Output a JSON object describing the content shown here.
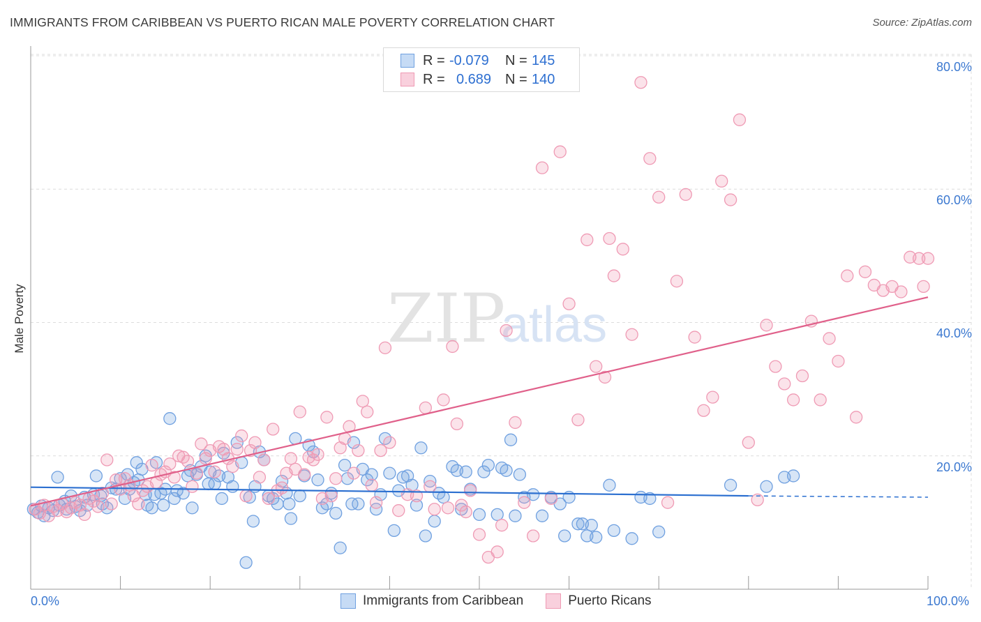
{
  "title": "IMMIGRANTS FROM CARIBBEAN VS PUERTO RICAN MALE POVERTY CORRELATION CHART",
  "source": "Source: ZipAtlas.com",
  "watermark": {
    "zip": "ZIP",
    "atlas": "atlas"
  },
  "legend_top": {
    "row1": {
      "r_label": "R =",
      "r_value": "-0.079",
      "n_label": "N =",
      "n_value": "145"
    },
    "row2": {
      "r_label": "R =",
      "r_value": "0.689",
      "n_label": "N =",
      "n_value": "140"
    }
  },
  "legend_bottom": {
    "series1": "Immigrants from Caribbean",
    "series2": "Puerto Ricans"
  },
  "colors": {
    "blue": "#6fa0e0",
    "blue_line": "#2b6fd0",
    "pink": "#ef9ab4",
    "pink_line": "#e0608a",
    "tick_text": "#3b78d0"
  },
  "chart_data": {
    "type": "scatter",
    "title": "IMMIGRANTS FROM CARIBBEAN VS PUERTO RICAN MALE POVERTY CORRELATION CHART",
    "xlabel": "",
    "ylabel": "Male Poverty",
    "xlim": [
      0,
      100
    ],
    "ylim": [
      0,
      80
    ],
    "x_ticks": [
      "0.0%",
      "100.0%"
    ],
    "y_ticks": [
      "20.0%",
      "40.0%",
      "60.0%",
      "80.0%"
    ],
    "grid": true,
    "legend": "top-center",
    "series": [
      {
        "name": "Immigrants from Caribbean",
        "color": "#6fa0e0",
        "trend": {
          "x": [
            0,
            80
          ],
          "y": [
            15.3,
            14.0
          ],
          "dashed_x": [
            80,
            100
          ],
          "dashed_y": [
            14.0,
            13.8
          ]
        },
        "points": [
          [
            0.3,
            12.0
          ],
          [
            0.8,
            11.5
          ],
          [
            1.2,
            12.5
          ],
          [
            1.5,
            11.0
          ],
          [
            2.0,
            12.2
          ],
          [
            2.5,
            11.8
          ],
          [
            3.0,
            16.8
          ],
          [
            3.2,
            12.6
          ],
          [
            3.8,
            13.2
          ],
          [
            4.0,
            12.0
          ],
          [
            4.5,
            14.0
          ],
          [
            5.0,
            12.4
          ],
          [
            5.5,
            11.8
          ],
          [
            6.0,
            13.8
          ],
          [
            6.3,
            12.6
          ],
          [
            7.0,
            14.2
          ],
          [
            7.3,
            17.0
          ],
          [
            7.8,
            14.0
          ],
          [
            8.0,
            12.8
          ],
          [
            8.5,
            12.2
          ],
          [
            9.0,
            15.2
          ],
          [
            9.5,
            15.0
          ],
          [
            10.0,
            16.6
          ],
          [
            10.5,
            13.6
          ],
          [
            10.8,
            17.2
          ],
          [
            11.0,
            15.0
          ],
          [
            11.5,
            16.0
          ],
          [
            11.8,
            19.0
          ],
          [
            12.0,
            16.4
          ],
          [
            12.4,
            18.0
          ],
          [
            12.8,
            14.2
          ],
          [
            13.0,
            12.6
          ],
          [
            13.5,
            12.2
          ],
          [
            13.8,
            14.2
          ],
          [
            14.0,
            19.0
          ],
          [
            14.5,
            14.4
          ],
          [
            14.8,
            12.6
          ],
          [
            15.0,
            15.0
          ],
          [
            15.5,
            25.6
          ],
          [
            16.0,
            13.6
          ],
          [
            16.3,
            14.8
          ],
          [
            17.0,
            14.4
          ],
          [
            17.5,
            17.0
          ],
          [
            17.8,
            17.8
          ],
          [
            18.0,
            12.2
          ],
          [
            18.5,
            17.2
          ],
          [
            19.0,
            18.4
          ],
          [
            19.5,
            20.0
          ],
          [
            19.8,
            15.8
          ],
          [
            20.0,
            17.6
          ],
          [
            20.5,
            15.8
          ],
          [
            21.0,
            17.0
          ],
          [
            21.3,
            13.6
          ],
          [
            21.5,
            20.4
          ],
          [
            22.0,
            16.8
          ],
          [
            22.5,
            15.4
          ],
          [
            23.0,
            22.0
          ],
          [
            23.5,
            19.0
          ],
          [
            24.0,
            4.0
          ],
          [
            24.4,
            13.8
          ],
          [
            24.8,
            10.2
          ],
          [
            25.0,
            15.4
          ],
          [
            25.5,
            20.6
          ],
          [
            26.0,
            19.4
          ],
          [
            26.5,
            14.0
          ],
          [
            27.0,
            13.6
          ],
          [
            27.5,
            12.8
          ],
          [
            28.0,
            16.2
          ],
          [
            28.5,
            14.4
          ],
          [
            28.8,
            12.8
          ],
          [
            29.0,
            10.6
          ],
          [
            29.5,
            22.6
          ],
          [
            30.0,
            14.0
          ],
          [
            30.5,
            17.0
          ],
          [
            31.0,
            21.6
          ],
          [
            31.5,
            20.6
          ],
          [
            32.0,
            16.4
          ],
          [
            32.5,
            12.2
          ],
          [
            33.0,
            12.8
          ],
          [
            33.5,
            14.4
          ],
          [
            34.0,
            11.4
          ],
          [
            34.5,
            6.2
          ],
          [
            35.0,
            18.6
          ],
          [
            35.3,
            16.6
          ],
          [
            35.8,
            12.8
          ],
          [
            36.0,
            22.0
          ],
          [
            36.5,
            12.8
          ],
          [
            37.0,
            18.0
          ],
          [
            37.5,
            16.4
          ],
          [
            38.0,
            17.2
          ],
          [
            38.5,
            12.0
          ],
          [
            39.0,
            14.2
          ],
          [
            39.5,
            22.6
          ],
          [
            40.0,
            17.4
          ],
          [
            40.5,
            8.8
          ],
          [
            41.0,
            14.8
          ],
          [
            41.5,
            16.8
          ],
          [
            42.0,
            17.0
          ],
          [
            42.5,
            15.6
          ],
          [
            43.0,
            12.6
          ],
          [
            43.5,
            21.2
          ],
          [
            44.0,
            8.0
          ],
          [
            44.5,
            16.2
          ],
          [
            45.0,
            10.2
          ],
          [
            45.5,
            14.4
          ],
          [
            46.0,
            13.8
          ],
          [
            47.0,
            18.4
          ],
          [
            47.5,
            17.8
          ],
          [
            48.0,
            12.0
          ],
          [
            48.5,
            17.6
          ],
          [
            49.0,
            15.0
          ],
          [
            50.0,
            11.2
          ],
          [
            50.5,
            17.6
          ],
          [
            51.0,
            18.6
          ],
          [
            52.0,
            11.2
          ],
          [
            52.5,
            18.2
          ],
          [
            53.0,
            17.8
          ],
          [
            53.5,
            22.4
          ],
          [
            54.0,
            11.0
          ],
          [
            54.5,
            17.2
          ],
          [
            55.0,
            13.8
          ],
          [
            56.0,
            14.2
          ],
          [
            57.0,
            11.0
          ],
          [
            58.0,
            13.8
          ],
          [
            59.0,
            12.8
          ],
          [
            59.5,
            8.0
          ],
          [
            60.0,
            13.8
          ],
          [
            61.0,
            9.8
          ],
          [
            61.5,
            9.8
          ],
          [
            62.0,
            8.0
          ],
          [
            62.5,
            9.6
          ],
          [
            63.0,
            7.8
          ],
          [
            64.5,
            15.6
          ],
          [
            65.0,
            8.8
          ],
          [
            67.0,
            7.6
          ],
          [
            68.0,
            13.8
          ],
          [
            69.0,
            13.6
          ],
          [
            70.0,
            8.6
          ],
          [
            78.0,
            15.6
          ],
          [
            82.0,
            15.4
          ],
          [
            84.0,
            16.8
          ],
          [
            85.0,
            17.0
          ]
        ]
      },
      {
        "name": "Puerto Ricans",
        "color": "#ef9ab4",
        "trend": {
          "x": [
            0,
            100
          ],
          "y": [
            12.5,
            43.8
          ]
        },
        "points": [
          [
            0.5,
            12.0
          ],
          [
            1.0,
            11.4
          ],
          [
            1.5,
            12.6
          ],
          [
            2.0,
            11.0
          ],
          [
            2.5,
            12.4
          ],
          [
            3.0,
            11.8
          ],
          [
            3.5,
            12.8
          ],
          [
            4.0,
            11.6
          ],
          [
            4.5,
            12.2
          ],
          [
            5.0,
            13.0
          ],
          [
            5.5,
            12.6
          ],
          [
            6.0,
            11.2
          ],
          [
            6.5,
            13.6
          ],
          [
            7.0,
            13.2
          ],
          [
            7.5,
            12.4
          ],
          [
            8.0,
            14.4
          ],
          [
            8.5,
            19.4
          ],
          [
            9.0,
            12.8
          ],
          [
            9.5,
            16.4
          ],
          [
            10.0,
            15.0
          ],
          [
            10.5,
            16.6
          ],
          [
            11.0,
            15.6
          ],
          [
            11.5,
            14.0
          ],
          [
            12.0,
            12.8
          ],
          [
            12.5,
            14.8
          ],
          [
            13.0,
            15.4
          ],
          [
            13.5,
            18.6
          ],
          [
            14.0,
            16.0
          ],
          [
            14.5,
            17.2
          ],
          [
            15.0,
            17.6
          ],
          [
            15.5,
            18.8
          ],
          [
            16.0,
            16.8
          ],
          [
            16.5,
            20.0
          ],
          [
            17.0,
            19.8
          ],
          [
            17.5,
            19.2
          ],
          [
            18.0,
            15.4
          ],
          [
            18.5,
            17.4
          ],
          [
            19.0,
            21.8
          ],
          [
            19.5,
            19.6
          ],
          [
            20.0,
            20.8
          ],
          [
            20.5,
            17.6
          ],
          [
            21.0,
            21.4
          ],
          [
            21.5,
            21.0
          ],
          [
            22.0,
            19.6
          ],
          [
            22.5,
            18.4
          ],
          [
            23.0,
            21.0
          ],
          [
            23.5,
            23.0
          ],
          [
            24.0,
            14.0
          ],
          [
            24.5,
            20.8
          ],
          [
            25.0,
            22.0
          ],
          [
            25.5,
            16.8
          ],
          [
            26.0,
            19.4
          ],
          [
            26.5,
            13.6
          ],
          [
            27.0,
            24.0
          ],
          [
            27.5,
            14.8
          ],
          [
            28.0,
            15.2
          ],
          [
            28.5,
            17.4
          ],
          [
            29.0,
            19.6
          ],
          [
            29.5,
            18.0
          ],
          [
            30.0,
            26.6
          ],
          [
            30.5,
            17.2
          ],
          [
            31.0,
            19.8
          ],
          [
            31.5,
            19.4
          ],
          [
            32.0,
            20.2
          ],
          [
            32.5,
            13.6
          ],
          [
            33.0,
            25.8
          ],
          [
            33.5,
            14.0
          ],
          [
            34.0,
            16.6
          ],
          [
            34.5,
            21.2
          ],
          [
            35.0,
            22.6
          ],
          [
            35.5,
            24.4
          ],
          [
            36.0,
            17.4
          ],
          [
            36.5,
            20.8
          ],
          [
            37.0,
            28.2
          ],
          [
            37.5,
            26.6
          ],
          [
            38.0,
            15.6
          ],
          [
            38.5,
            13.0
          ],
          [
            39.0,
            20.8
          ],
          [
            39.5,
            36.2
          ],
          [
            40.0,
            22.0
          ],
          [
            41.0,
            11.8
          ],
          [
            42.0,
            14.2
          ],
          [
            43.0,
            14.0
          ],
          [
            44.0,
            27.2
          ],
          [
            44.5,
            15.4
          ],
          [
            45.0,
            12.0
          ],
          [
            46.0,
            28.4
          ],
          [
            46.5,
            12.2
          ],
          [
            47.0,
            36.4
          ],
          [
            47.5,
            24.8
          ],
          [
            48.0,
            12.6
          ],
          [
            48.5,
            11.6
          ],
          [
            49.0,
            14.8
          ],
          [
            50.0,
            8.2
          ],
          [
            51.0,
            4.8
          ],
          [
            52.0,
            5.6
          ],
          [
            52.5,
            9.6
          ],
          [
            53.0,
            38.8
          ],
          [
            54.0,
            25.0
          ],
          [
            55.0,
            13.0
          ],
          [
            56.0,
            8.0
          ],
          [
            57.0,
            63.2
          ],
          [
            58.0,
            13.6
          ],
          [
            59.0,
            65.6
          ],
          [
            60.0,
            42.8
          ],
          [
            61.0,
            25.4
          ],
          [
            62.0,
            52.4
          ],
          [
            63.0,
            33.4
          ],
          [
            64.0,
            31.8
          ],
          [
            64.5,
            52.6
          ],
          [
            65.0,
            47.0
          ],
          [
            66.0,
            51.0
          ],
          [
            67.0,
            38.2
          ],
          [
            68.0,
            76.0
          ],
          [
            69.0,
            64.6
          ],
          [
            70.0,
            58.8
          ],
          [
            71.0,
            13.0
          ],
          [
            72.0,
            46.2
          ],
          [
            73.0,
            59.2
          ],
          [
            74.0,
            37.8
          ],
          [
            75.0,
            26.8
          ],
          [
            76.0,
            28.8
          ],
          [
            77.0,
            61.2
          ],
          [
            78.0,
            58.4
          ],
          [
            79.0,
            70.4
          ],
          [
            80.0,
            22.0
          ],
          [
            81.0,
            13.4
          ],
          [
            82.0,
            39.6
          ],
          [
            83.0,
            33.4
          ],
          [
            84.0,
            30.8
          ],
          [
            85.0,
            28.4
          ],
          [
            86.0,
            32.0
          ],
          [
            87.0,
            40.2
          ],
          [
            88.0,
            28.4
          ],
          [
            89.0,
            37.6
          ],
          [
            90.0,
            34.2
          ],
          [
            91.0,
            47.0
          ],
          [
            92.0,
            25.8
          ],
          [
            93.0,
            47.6
          ],
          [
            94.0,
            45.6
          ],
          [
            95.0,
            44.8
          ],
          [
            96.0,
            45.4
          ],
          [
            97.0,
            44.6
          ],
          [
            98.0,
            49.8
          ],
          [
            99.0,
            49.6
          ],
          [
            99.5,
            45.4
          ],
          [
            100.0,
            49.6
          ]
        ]
      }
    ]
  }
}
